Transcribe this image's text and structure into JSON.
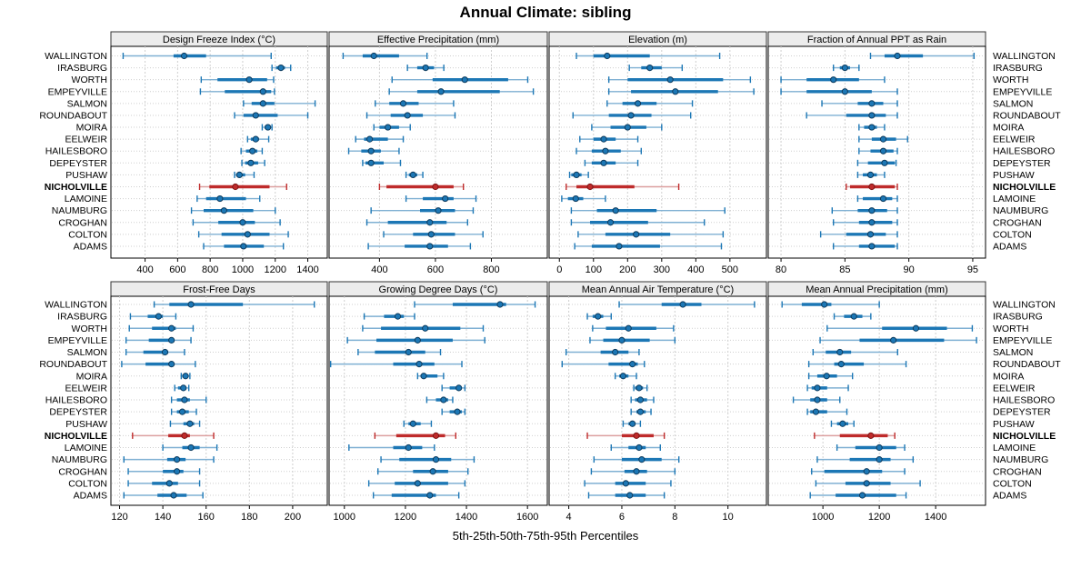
{
  "title": "Annual Climate: sibling",
  "caption": "5th-25th-50th-75th-95th Percentiles",
  "colors": {
    "series": "#1c77b5",
    "series_light": "#7fb0d3",
    "highlight": "#bf2b2b",
    "highlight_light": "#dc9f9f",
    "strip_bg": "#ececec",
    "panel_border": "#000000",
    "grid": "#cfcfcf",
    "text": "#000000"
  },
  "stations": [
    "WALLINGTON",
    "IRASBURG",
    "WORTH",
    "EMPEYVILLE",
    "SALMON",
    "ROUNDABOUT",
    "MOIRA",
    "EELWEIR",
    "HAILESBORO",
    "DEPEYSTER",
    "PUSHAW",
    "NICHOLVILLE",
    "LAMOINE",
    "NAUMBURG",
    "CROGHAN",
    "COLTON",
    "ADAMS"
  ],
  "highlight_station": "NICHOLVILLE",
  "percentiles": [
    5,
    25,
    50,
    75,
    95
  ],
  "chart_data": [
    {
      "type": "dot-whisker",
      "title": "Design Freeze Index (°C)",
      "xlim": [
        190,
        1520
      ],
      "ticks": [
        400,
        600,
        800,
        1000,
        1200,
        1400
      ],
      "values": [
        [
          265,
          575,
          640,
          775,
          1175
        ],
        [
          1180,
          1205,
          1235,
          1260,
          1295
        ],
        [
          745,
          845,
          1040,
          1150,
          1190
        ],
        [
          740,
          890,
          1125,
          1175,
          1195
        ],
        [
          1005,
          1055,
          1125,
          1195,
          1445
        ],
        [
          950,
          1005,
          1080,
          1215,
          1400
        ],
        [
          1120,
          1135,
          1155,
          1170,
          1180
        ],
        [
          1030,
          1050,
          1080,
          1100,
          1160
        ],
        [
          990,
          1020,
          1060,
          1090,
          1120
        ],
        [
          995,
          1015,
          1050,
          1095,
          1135
        ],
        [
          950,
          960,
          980,
          1015,
          1070
        ],
        [
          735,
          795,
          955,
          1165,
          1270
        ],
        [
          720,
          775,
          860,
          1020,
          1105
        ],
        [
          685,
          760,
          885,
          1065,
          1200
        ],
        [
          695,
          850,
          1000,
          1075,
          1230
        ],
        [
          730,
          870,
          1030,
          1165,
          1280
        ],
        [
          760,
          885,
          1005,
          1130,
          1250
        ]
      ]
    },
    {
      "type": "dot-whisker",
      "title": "Effective Precipitation (mm)",
      "xlim": [
        220,
        1000
      ],
      "ticks": [
        400,
        600,
        800
      ],
      "values": [
        [
          270,
          340,
          380,
          470,
          570
        ],
        [
          500,
          535,
          565,
          595,
          630
        ],
        [
          445,
          590,
          705,
          860,
          930
        ],
        [
          435,
          535,
          620,
          830,
          950
        ],
        [
          385,
          435,
          485,
          540,
          665
        ],
        [
          355,
          440,
          500,
          555,
          670
        ],
        [
          380,
          400,
          430,
          470,
          510
        ],
        [
          315,
          345,
          365,
          430,
          485
        ],
        [
          290,
          335,
          370,
          405,
          470
        ],
        [
          340,
          350,
          370,
          415,
          475
        ],
        [
          495,
          505,
          520,
          535,
          555
        ],
        [
          400,
          425,
          600,
          665,
          700
        ],
        [
          495,
          555,
          635,
          665,
          745
        ],
        [
          370,
          545,
          610,
          670,
          735
        ],
        [
          355,
          430,
          580,
          640,
          715
        ],
        [
          415,
          520,
          585,
          670,
          770
        ],
        [
          360,
          490,
          580,
          645,
          725
        ]
      ]
    },
    {
      "type": "dot-whisker",
      "title": "Elevation (m)",
      "xlim": [
        -30,
        607
      ],
      "ticks": [
        0,
        100,
        200,
        300,
        400,
        500
      ],
      "values": [
        [
          50,
          100,
          140,
          265,
          470
        ],
        [
          205,
          240,
          265,
          300,
          360
        ],
        [
          145,
          200,
          325,
          480,
          560
        ],
        [
          145,
          210,
          340,
          465,
          570
        ],
        [
          140,
          185,
          230,
          285,
          390
        ],
        [
          40,
          145,
          210,
          270,
          385
        ],
        [
          95,
          150,
          200,
          255,
          300
        ],
        [
          60,
          100,
          130,
          165,
          230
        ],
        [
          50,
          95,
          135,
          180,
          240
        ],
        [
          75,
          95,
          130,
          165,
          230
        ],
        [
          30,
          35,
          50,
          65,
          85
        ],
        [
          20,
          50,
          90,
          220,
          350
        ],
        [
          7,
          25,
          48,
          70,
          135
        ],
        [
          35,
          110,
          165,
          285,
          485
        ],
        [
          35,
          90,
          150,
          260,
          425
        ],
        [
          55,
          135,
          225,
          325,
          480
        ],
        [
          45,
          95,
          175,
          295,
          475
        ]
      ]
    },
    {
      "type": "dot-whisker",
      "title": "Fraction of Annual PPT as Rain",
      "xlim": [
        79,
        96
      ],
      "ticks": [
        80,
        85,
        90,
        95
      ],
      "values": [
        [
          87,
          88.1,
          89.1,
          91.1,
          95.1
        ],
        [
          84.1,
          84.6,
          85,
          85.4,
          86.1
        ],
        [
          80,
          82,
          84.1,
          86.1,
          88.1
        ],
        [
          80,
          82,
          85,
          87.1,
          89.1
        ],
        [
          83.2,
          86,
          87.1,
          88,
          89.1
        ],
        [
          82,
          85.1,
          87.1,
          88.2,
          89.1
        ],
        [
          86.1,
          86.5,
          87.1,
          87.5,
          88.1
        ],
        [
          86.1,
          87.1,
          88,
          89,
          89.9
        ],
        [
          86.1,
          87,
          88,
          88.8,
          89.1
        ],
        [
          86,
          86.8,
          88.1,
          88.9,
          89
        ],
        [
          86,
          86.4,
          87,
          87.5,
          88.1
        ],
        [
          85.1,
          85.4,
          87.1,
          88.9,
          89.1
        ],
        [
          86,
          86.4,
          88,
          88.7,
          89.1
        ],
        [
          84,
          86,
          87.1,
          88.3,
          89.1
        ],
        [
          84.1,
          86.1,
          87.1,
          88.7,
          89.1
        ],
        [
          83.1,
          85.1,
          87,
          88.2,
          89.1
        ],
        [
          84.1,
          86.1,
          87.1,
          88.9,
          89.1
        ]
      ]
    },
    {
      "type": "dot-whisker",
      "title": "Frost-Free Days",
      "xlim": [
        116,
        216
      ],
      "ticks": [
        120,
        140,
        160,
        180,
        200
      ],
      "values": [
        [
          136,
          143,
          153,
          177,
          210
        ],
        [
          125,
          133,
          138,
          140,
          146
        ],
        [
          124.5,
          135,
          144,
          146,
          154
        ],
        [
          123,
          133.5,
          144,
          145,
          153
        ],
        [
          123,
          131,
          141,
          142.5,
          150
        ],
        [
          121,
          132,
          144,
          145,
          155
        ],
        [
          148.5,
          149,
          150.5,
          151.5,
          152.5
        ],
        [
          145.5,
          147,
          149.5,
          150.5,
          152
        ],
        [
          144,
          146.5,
          150,
          152.5,
          160
        ],
        [
          144,
          146.5,
          149,
          152,
          155.5
        ],
        [
          143.5,
          149.5,
          152.5,
          154.5,
          157
        ],
        [
          126,
          142.5,
          150,
          152.5,
          163.5
        ],
        [
          140,
          149,
          153,
          157,
          165
        ],
        [
          122,
          142,
          146.5,
          150.5,
          163.5
        ],
        [
          124,
          140,
          146.5,
          149.5,
          157
        ],
        [
          124,
          135,
          143,
          147,
          157
        ],
        [
          122,
          137.5,
          145,
          151,
          158.5
        ]
      ]
    },
    {
      "type": "dot-whisker",
      "title": "Growing Degree Days (°C)",
      "xlim": [
        950,
        1665
      ],
      "ticks": [
        1000,
        1200,
        1400,
        1600
      ],
      "values": [
        [
          1230,
          1355,
          1510,
          1530,
          1625
        ],
        [
          1065,
          1130,
          1175,
          1195,
          1230
        ],
        [
          1060,
          1120,
          1265,
          1380,
          1455
        ],
        [
          1010,
          1105,
          1240,
          1355,
          1460
        ],
        [
          1045,
          1100,
          1210,
          1265,
          1315
        ],
        [
          955,
          1160,
          1245,
          1295,
          1385
        ],
        [
          1240,
          1250,
          1260,
          1305,
          1325
        ],
        [
          1320,
          1345,
          1375,
          1385,
          1395
        ],
        [
          1270,
          1300,
          1325,
          1340,
          1355
        ],
        [
          1320,
          1345,
          1370,
          1385,
          1395
        ],
        [
          1195,
          1210,
          1225,
          1250,
          1285
        ],
        [
          1100,
          1170,
          1300,
          1330,
          1365
        ],
        [
          1015,
          1160,
          1210,
          1255,
          1295
        ],
        [
          1120,
          1180,
          1300,
          1350,
          1425
        ],
        [
          1110,
          1225,
          1290,
          1340,
          1405
        ],
        [
          1080,
          1165,
          1240,
          1340,
          1395
        ],
        [
          1095,
          1155,
          1280,
          1300,
          1375
        ]
      ]
    },
    {
      "type": "dot-whisker",
      "title": "Mean Annual Air Temperature (°C)",
      "xlim": [
        3.26,
        11.45
      ],
      "ticks": [
        4,
        6,
        8,
        10
      ],
      "values": [
        [
          5.9,
          7.5,
          8.3,
          9.0,
          11.0
        ],
        [
          4.7,
          4.9,
          5.1,
          5.3,
          5.6
        ],
        [
          4.9,
          5.4,
          6.25,
          7.3,
          7.95
        ],
        [
          4.8,
          5.3,
          6.0,
          7.05,
          8.0
        ],
        [
          3.9,
          5.2,
          5.75,
          6.25,
          6.65
        ],
        [
          3.75,
          5.5,
          6.4,
          6.6,
          6.85
        ],
        [
          5.75,
          5.9,
          6.05,
          6.25,
          6.55
        ],
        [
          6.45,
          6.5,
          6.65,
          6.8,
          6.95
        ],
        [
          6.35,
          6.5,
          6.7,
          6.95,
          7.2
        ],
        [
          6.35,
          6.55,
          6.7,
          6.9,
          7.1
        ],
        [
          6.05,
          6.25,
          6.4,
          6.5,
          6.7
        ],
        [
          4.7,
          6.0,
          6.55,
          7.2,
          7.6
        ],
        [
          5.6,
          6.25,
          6.65,
          6.9,
          7.45
        ],
        [
          4.95,
          6.0,
          6.75,
          7.5,
          8.15
        ],
        [
          4.85,
          6.1,
          6.55,
          6.95,
          8.0
        ],
        [
          4.6,
          5.75,
          6.15,
          6.9,
          7.85
        ],
        [
          4.75,
          5.75,
          6.3,
          6.9,
          7.6
        ]
      ]
    },
    {
      "type": "dot-whisker",
      "title": "Mean Annual Precipitation (mm)",
      "xlim": [
        806,
        1577
      ],
      "ticks": [
        1000,
        1200,
        1400
      ],
      "values": [
        [
          855,
          925,
          1005,
          1030,
          1200
        ],
        [
          1040,
          1075,
          1110,
          1140,
          1170
        ],
        [
          1015,
          1210,
          1330,
          1440,
          1530
        ],
        [
          990,
          1130,
          1250,
          1430,
          1545
        ],
        [
          965,
          1010,
          1060,
          1100,
          1265
        ],
        [
          950,
          1040,
          1065,
          1145,
          1295
        ],
        [
          950,
          980,
          1013,
          1050,
          1105
        ],
        [
          945,
          960,
          980,
          1015,
          1090
        ],
        [
          895,
          955,
          980,
          1015,
          1060
        ],
        [
          945,
          955,
          975,
          1015,
          1085
        ],
        [
          1030,
          1050,
          1070,
          1090,
          1110
        ],
        [
          970,
          1060,
          1170,
          1230,
          1255
        ],
        [
          1050,
          1115,
          1200,
          1260,
          1290
        ],
        [
          980,
          1095,
          1200,
          1240,
          1320
        ],
        [
          960,
          1005,
          1155,
          1210,
          1290
        ],
        [
          975,
          1080,
          1155,
          1240,
          1345
        ],
        [
          955,
          1045,
          1140,
          1260,
          1295
        ]
      ]
    }
  ]
}
